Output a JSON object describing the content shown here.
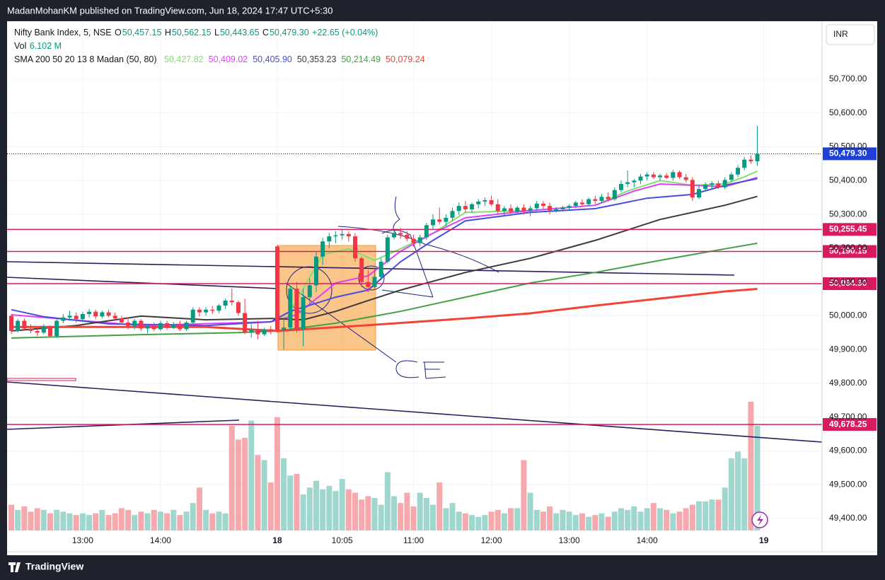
{
  "header": "MadanMohanKM published on TradingView.com, Jun 18, 2024 17:47 UTC+5:30",
  "footer": "TradingView",
  "currency": "INR",
  "chart_data": {
    "type": "candlestick",
    "symbol": "Nifty Bank Index, 5, NSE",
    "legend": {
      "o_label": "O",
      "open": "50,457.15",
      "h_label": "H",
      "high": "50,562.15",
      "l_label": "L",
      "low": "50,443.65",
      "c_label": "C",
      "close": "50,479.30",
      "change": "+22.65 (+0.04%)"
    },
    "volume_label": "Vol",
    "volume_value": "6.102 M",
    "categories": [
      null,
      null,
      null,
      null,
      null,
      null,
      null,
      null,
      null,
      null,
      null,
      "13:00",
      null,
      null,
      null,
      null,
      null,
      null,
      null,
      null,
      null,
      null,
      null,
      "14:00",
      null,
      null,
      null,
      null,
      null,
      null,
      null,
      null,
      null,
      null,
      null,
      null,
      null,
      null,
      null,
      null,
      null,
      "18",
      null,
      null,
      null,
      null,
      null,
      null,
      null,
      null,
      null,
      "10:05",
      null,
      null,
      null,
      null,
      null,
      null,
      null,
      null,
      null,
      null,
      "11:00",
      null,
      null,
      null,
      null,
      null,
      null,
      null,
      null,
      null,
      null,
      null,
      "12:00",
      null,
      null,
      null,
      null,
      null,
      null,
      null,
      null,
      null,
      null,
      null,
      "13:00",
      null,
      null,
      null,
      null,
      null,
      null,
      null,
      null,
      null,
      null,
      null,
      "14:00",
      null,
      null,
      null,
      null,
      null,
      null,
      null,
      null,
      null,
      null,
      null,
      null,
      null,
      null,
      null,
      null,
      null,
      "19"
    ],
    "open": [
      50000,
      49955,
      49985,
      49962,
      49955,
      49950,
      49968,
      49940,
      49985,
      49995,
      50000,
      49990,
      50005,
      50012,
      49998,
      50010,
      50000,
      49992,
      49980,
      49970,
      49985,
      49962,
      49970,
      49960,
      49978,
      49965,
      49975,
      49960,
      49980,
      50018,
      50010,
      50018,
      50015,
      50030,
      50045,
      50040,
      50008,
      49950,
      49960,
      49945,
      49960,
      50205,
      49958,
      49965,
      50080,
      49960,
      50055,
      50090,
      50175,
      50220,
      50235,
      50238,
      50242,
      50235,
      50170,
      50100,
      50085,
      50115,
      50160,
      50232,
      50245,
      50240,
      50228,
      50215,
      50232,
      50268,
      50285,
      50278,
      50290,
      50310,
      50325,
      50315,
      50330,
      50338,
      50342,
      50330,
      50310,
      50318,
      50308,
      50320,
      50310,
      50318,
      50332,
      50325,
      50312,
      50315,
      50320,
      50325,
      50335,
      50330,
      50345,
      50340,
      50352,
      50345,
      50372,
      50390,
      50395,
      50400,
      50412,
      50418,
      50410,
      50415,
      50408,
      50425,
      50410,
      50402,
      50350,
      50375,
      50388,
      50392,
      50380,
      50402,
      50418,
      50438,
      50462,
      50457.15,
      null
    ],
    "high": [
      50005,
      49990,
      49992,
      49975,
      49962,
      49975,
      49972,
      49990,
      50005,
      50015,
      50010,
      50012,
      50020,
      50018,
      50015,
      50018,
      50010,
      50000,
      49995,
      49990,
      49990,
      49975,
      49980,
      49985,
      49985,
      49982,
      49985,
      49985,
      50025,
      50025,
      50025,
      50028,
      50035,
      50050,
      50080,
      50045,
      50050,
      49975,
      49985,
      49965,
      49970,
      50210,
      49995,
      50090,
      50100,
      50080,
      50110,
      50190,
      50230,
      50245,
      50250,
      50255,
      50250,
      50245,
      50175,
      50135,
      50140,
      50170,
      50240,
      50255,
      50260,
      50250,
      50240,
      50240,
      50275,
      50300,
      50320,
      50300,
      50320,
      50335,
      50340,
      50335,
      50345,
      50350,
      50355,
      50345,
      50325,
      50330,
      50325,
      50330,
      50325,
      50340,
      50340,
      50335,
      50322,
      50325,
      50330,
      50340,
      50345,
      50350,
      50355,
      50360,
      50365,
      50380,
      50400,
      50430,
      50405,
      50420,
      50425,
      50425,
      50420,
      50422,
      50432,
      50430,
      50420,
      50410,
      50385,
      50395,
      50398,
      50400,
      50410,
      50425,
      50445,
      50470,
      50475,
      50562.15,
      null
    ],
    "low": [
      49945,
      49950,
      49955,
      49948,
      49940,
      49945,
      49935,
      49935,
      49978,
      49985,
      49980,
      49985,
      49995,
      49990,
      49992,
      49995,
      49985,
      49975,
      49960,
      49960,
      49955,
      49948,
      49955,
      49955,
      49958,
      49960,
      49955,
      49955,
      49975,
      49998,
      50000,
      50005,
      50008,
      50020,
      50030,
      50000,
      49945,
      49935,
      49930,
      49940,
      49945,
      49950,
      49900,
      49955,
      49950,
      49910,
      50030,
      50070,
      50150,
      50200,
      50215,
      50225,
      50220,
      50160,
      50085,
      50070,
      50080,
      50105,
      50155,
      50225,
      50228,
      50220,
      50205,
      50205,
      50225,
      50255,
      50270,
      50265,
      50280,
      50298,
      50305,
      50305,
      50318,
      50325,
      50325,
      50300,
      50295,
      50302,
      50300,
      50300,
      50295,
      50310,
      50315,
      50300,
      50305,
      50308,
      50310,
      50318,
      50325,
      50325,
      50330,
      50335,
      50340,
      50340,
      50365,
      50380,
      50380,
      50390,
      50400,
      50405,
      50400,
      50405,
      50400,
      50405,
      50395,
      50340,
      50345,
      50368,
      50375,
      50375,
      50375,
      50395,
      50410,
      50430,
      50450,
      50443.65,
      null
    ],
    "close": [
      49955,
      49985,
      49962,
      49955,
      49950,
      49968,
      49940,
      49985,
      49995,
      50000,
      49990,
      50005,
      50012,
      49998,
      50010,
      50000,
      49992,
      49980,
      49970,
      49985,
      49962,
      49970,
      49960,
      49978,
      49965,
      49975,
      49960,
      49980,
      50018,
      50010,
      50018,
      50015,
      50030,
      50045,
      50040,
      50008,
      49950,
      49960,
      49945,
      49960,
      49955,
      49958,
      49965,
      50080,
      49960,
      50055,
      50090,
      50175,
      50220,
      50235,
      50238,
      50242,
      50235,
      50170,
      50100,
      50085,
      50115,
      50160,
      50232,
      50245,
      50240,
      50228,
      50215,
      50232,
      50268,
      50285,
      50278,
      50290,
      50310,
      50325,
      50315,
      50330,
      50338,
      50342,
      50330,
      50310,
      50318,
      50308,
      50320,
      50310,
      50318,
      50332,
      50325,
      50312,
      50315,
      50320,
      50325,
      50335,
      50330,
      50345,
      50340,
      50352,
      50345,
      50372,
      50390,
      50395,
      50400,
      50412,
      50418,
      50410,
      50415,
      50408,
      50425,
      50410,
      50402,
      50350,
      50375,
      50388,
      50392,
      50380,
      50402,
      50418,
      50438,
      50462,
      50457,
      50479.3,
      null
    ],
    "volume": [
      1.5,
      1.2,
      1.4,
      1.1,
      1.3,
      1.2,
      1.0,
      1.2,
      1.1,
      1.0,
      0.9,
      1.0,
      0.9,
      1.0,
      1.2,
      0.9,
      1.0,
      1.3,
      1.2,
      0.9,
      1.1,
      1.0,
      1.2,
      1.1,
      1.0,
      1.2,
      0.9,
      1.1,
      1.6,
      2.5,
      1.2,
      1.0,
      1.1,
      1.0,
      6.1,
      5.3,
      5.4,
      6.4,
      4.4,
      4.1,
      2.8,
      6.6,
      4.2,
      3.2,
      3.3,
      2.1,
      2.5,
      2.9,
      2.4,
      2.6,
      2.3,
      3.0,
      2.4,
      2.2,
      1.8,
      2.0,
      1.9,
      1.5,
      3.4,
      2.0,
      1.6,
      2.2,
      1.4,
      2.2,
      1.9,
      1.5,
      2.8,
      1.3,
      1.6,
      1.1,
      1.0,
      0.9,
      0.8,
      0.9,
      1.1,
      1.2,
      1.0,
      1.3,
      1.3,
      4.1,
      2.2,
      1.2,
      1.1,
      1.4,
      1.0,
      1.2,
      1.1,
      0.9,
      1.0,
      0.8,
      0.9,
      1.0,
      0.8,
      1.1,
      1.3,
      1.2,
      1.4,
      1.1,
      1.3,
      1.6,
      1.3,
      1.2,
      1.0,
      1.1,
      1.3,
      1.5,
      1.7,
      1.7,
      1.8,
      1.8,
      2.5,
      4.2,
      4.6,
      4.2,
      7.5,
      6.102,
      null
    ],
    "up_color": "#089981",
    "down_color": "#f23645",
    "volume_up_color": "#9fd6cd",
    "volume_down_color": "#f5a9ad",
    "ylim": [
      49301.6,
      50871.7
    ],
    "yticks": [
      {
        "value": 49400,
        "label": "49,400.00"
      },
      {
        "value": 49500,
        "label": "49,500.00"
      },
      {
        "value": 49600,
        "label": "49,600.00"
      },
      {
        "value": 49700,
        "label": "49,700.00"
      },
      {
        "value": 49800,
        "label": "49,800.00"
      },
      {
        "value": 49900,
        "label": "49,900.00"
      },
      {
        "value": 50000,
        "label": "50,000.00"
      },
      {
        "value": 50100,
        "label": "50,100.00"
      },
      {
        "value": 50200,
        "label": "50,200.00"
      },
      {
        "value": 50300,
        "label": "50,300.00"
      },
      {
        "value": 50400,
        "label": "50,400.00"
      },
      {
        "value": 50500,
        "label": "50,500.00"
      },
      {
        "value": 50600,
        "label": "50,600.00"
      },
      {
        "value": 50700,
        "label": "50,700.00"
      }
    ],
    "grid": true,
    "indicator": {
      "label": "SMA 200 50 20 13 8 Madan (50, 80)",
      "lines": [
        {
          "color": "#7be36b",
          "last_label": "50,427.82",
          "x": [
            41,
            43,
            48,
            52,
            56,
            60,
            65,
            70,
            80,
            90,
            95,
            100,
            105,
            110,
            113,
            115
          ],
          "values": [
            49990,
            50013,
            50181,
            50198,
            50164,
            50198,
            50244,
            50306,
            50311,
            50327,
            50369,
            50400,
            50386,
            50390,
            50411,
            50427.82
          ]
        },
        {
          "color": "#e040fb",
          "last_label": "50,409.02",
          "x": [
            0,
            20,
            40,
            44,
            50,
            55,
            60,
            65,
            70,
            80,
            90,
            96,
            100,
            105,
            110,
            115
          ],
          "values": [
            50003,
            49971,
            49982,
            50003,
            50097,
            50118,
            50191,
            50244,
            50290,
            50311,
            50327,
            50369,
            50390,
            50386,
            50382,
            50409.02
          ]
        },
        {
          "color": "#4a4ce0",
          "last_label": "50,405.90",
          "x": [
            0,
            5,
            15,
            30,
            40,
            43,
            50,
            55,
            60,
            65,
            70,
            80,
            90,
            98,
            105,
            110,
            115
          ],
          "values": [
            50018,
            49997,
            49976,
            49971,
            49982,
            50013,
            50055,
            50076,
            50160,
            50223,
            50281,
            50306,
            50317,
            50348,
            50359,
            50386,
            50405.9
          ]
        },
        {
          "color": "#3e3a38",
          "last_label": "50,353.23",
          "x": [
            0,
            10,
            20,
            30,
            40,
            45,
            50,
            55,
            60,
            70,
            80,
            90,
            100,
            110,
            115
          ],
          "values": [
            49955,
            49971,
            49999,
            49988,
            49992,
            49988,
            50013,
            50045,
            50076,
            50128,
            50170,
            50223,
            50285,
            50327,
            50353.23
          ]
        },
        {
          "color": "#43a047",
          "last_label": "50,214.49",
          "x": [
            0,
            20,
            35,
            41,
            50,
            60,
            70,
            80,
            90,
            100,
            110,
            115
          ],
          "values": [
            49934,
            49944,
            49950,
            49955,
            49978,
            50013,
            50055,
            50097,
            50128,
            50164,
            50198,
            50214.49
          ]
        },
        {
          "color": "#f44336",
          "last_label": "50,079.24",
          "x": [
            0,
            30,
            41,
            55,
            70,
            80,
            90,
            100,
            110,
            115
          ],
          "values": [
            49967,
            49967,
            49955,
            49972,
            49992,
            50007,
            50030,
            50051,
            50072,
            50079.24
          ]
        }
      ]
    },
    "hline_color": "#d81b60",
    "hlines": [
      {
        "value": 50255.45,
        "label": "50,255.45"
      },
      {
        "value": 50190.15,
        "label": "50,190.15"
      },
      {
        "value": 50094.9,
        "label": "50,094.90"
      },
      {
        "value": 49678.25,
        "label": "49,678.25"
      }
    ],
    "last_price": {
      "value": 50479.3,
      "label": "50,479.30",
      "color": "#1e40d8"
    }
  }
}
